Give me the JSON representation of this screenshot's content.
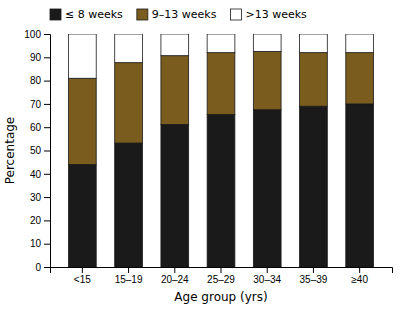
{
  "chart_data": {
    "type": "bar",
    "stacked": true,
    "categories": [
      "<15",
      "15–19",
      "20–24",
      "25–29",
      "30–34",
      "35–39",
      "≥40"
    ],
    "series": [
      {
        "name": "≤ 8 weeks",
        "color": "#1a1a1a",
        "values": [
          44.0,
          53.2,
          61.2,
          65.5,
          67.5,
          69.0,
          70.0
        ]
      },
      {
        "name": "9–13 weeks",
        "color": "#7a5c1e",
        "values": [
          37.0,
          34.5,
          29.5,
          26.5,
          25.0,
          23.0,
          22.0
        ]
      },
      {
        "name": ">13 weeks",
        "color": "#ffffff",
        "values": [
          19.0,
          12.3,
          9.3,
          8.0,
          7.5,
          8.0,
          8.0
        ]
      }
    ],
    "xlabel": "Age group (yrs)",
    "ylabel": "Percentage",
    "ylim": [
      0,
      100
    ],
    "yticks": [
      0,
      10,
      20,
      30,
      40,
      50,
      60,
      70,
      80,
      90,
      100
    ],
    "grid": false,
    "legend": "upper left"
  }
}
